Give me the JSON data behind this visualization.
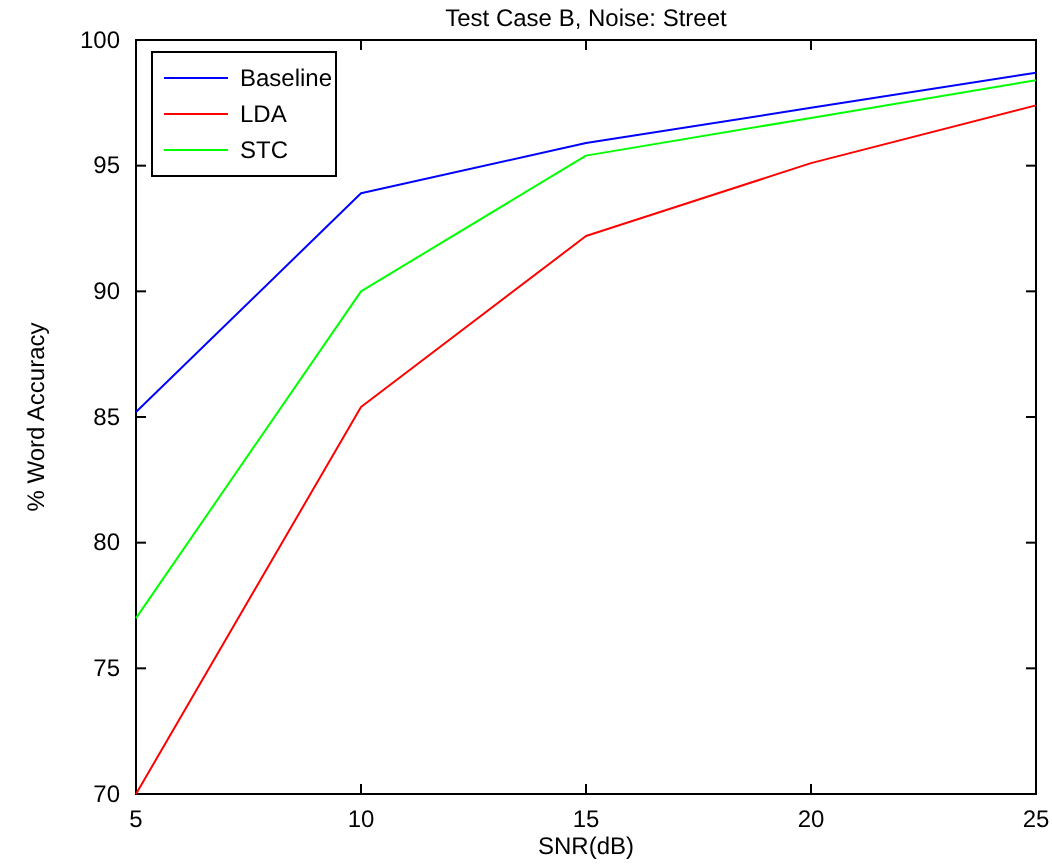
{
  "chart_data": {
    "type": "line",
    "title": "Test Case B, Noise: Street",
    "xlabel": "SNR(dB)",
    "ylabel": "% Word Accuracy",
    "x": [
      5,
      10,
      15,
      20,
      25
    ],
    "series": [
      {
        "name": "Baseline",
        "color": "#0000ff",
        "values": [
          85.2,
          93.9,
          95.9,
          97.3,
          98.7
        ]
      },
      {
        "name": "LDA",
        "color": "#ff0000",
        "values": [
          70,
          85.4,
          92.2,
          95.1,
          97.4
        ]
      },
      {
        "name": "STC",
        "color": "#00ff00",
        "values": [
          77,
          90,
          95.4,
          96.9,
          98.4
        ]
      }
    ],
    "xlim": [
      5,
      25
    ],
    "xticks": [
      5,
      10,
      15,
      20,
      25
    ],
    "ylim": [
      70,
      100
    ],
    "yticks": [
      70,
      75,
      80,
      85,
      90,
      95,
      100
    ],
    "grid": false,
    "legend": "top left",
    "marker": "none",
    "line_style": "solid"
  }
}
